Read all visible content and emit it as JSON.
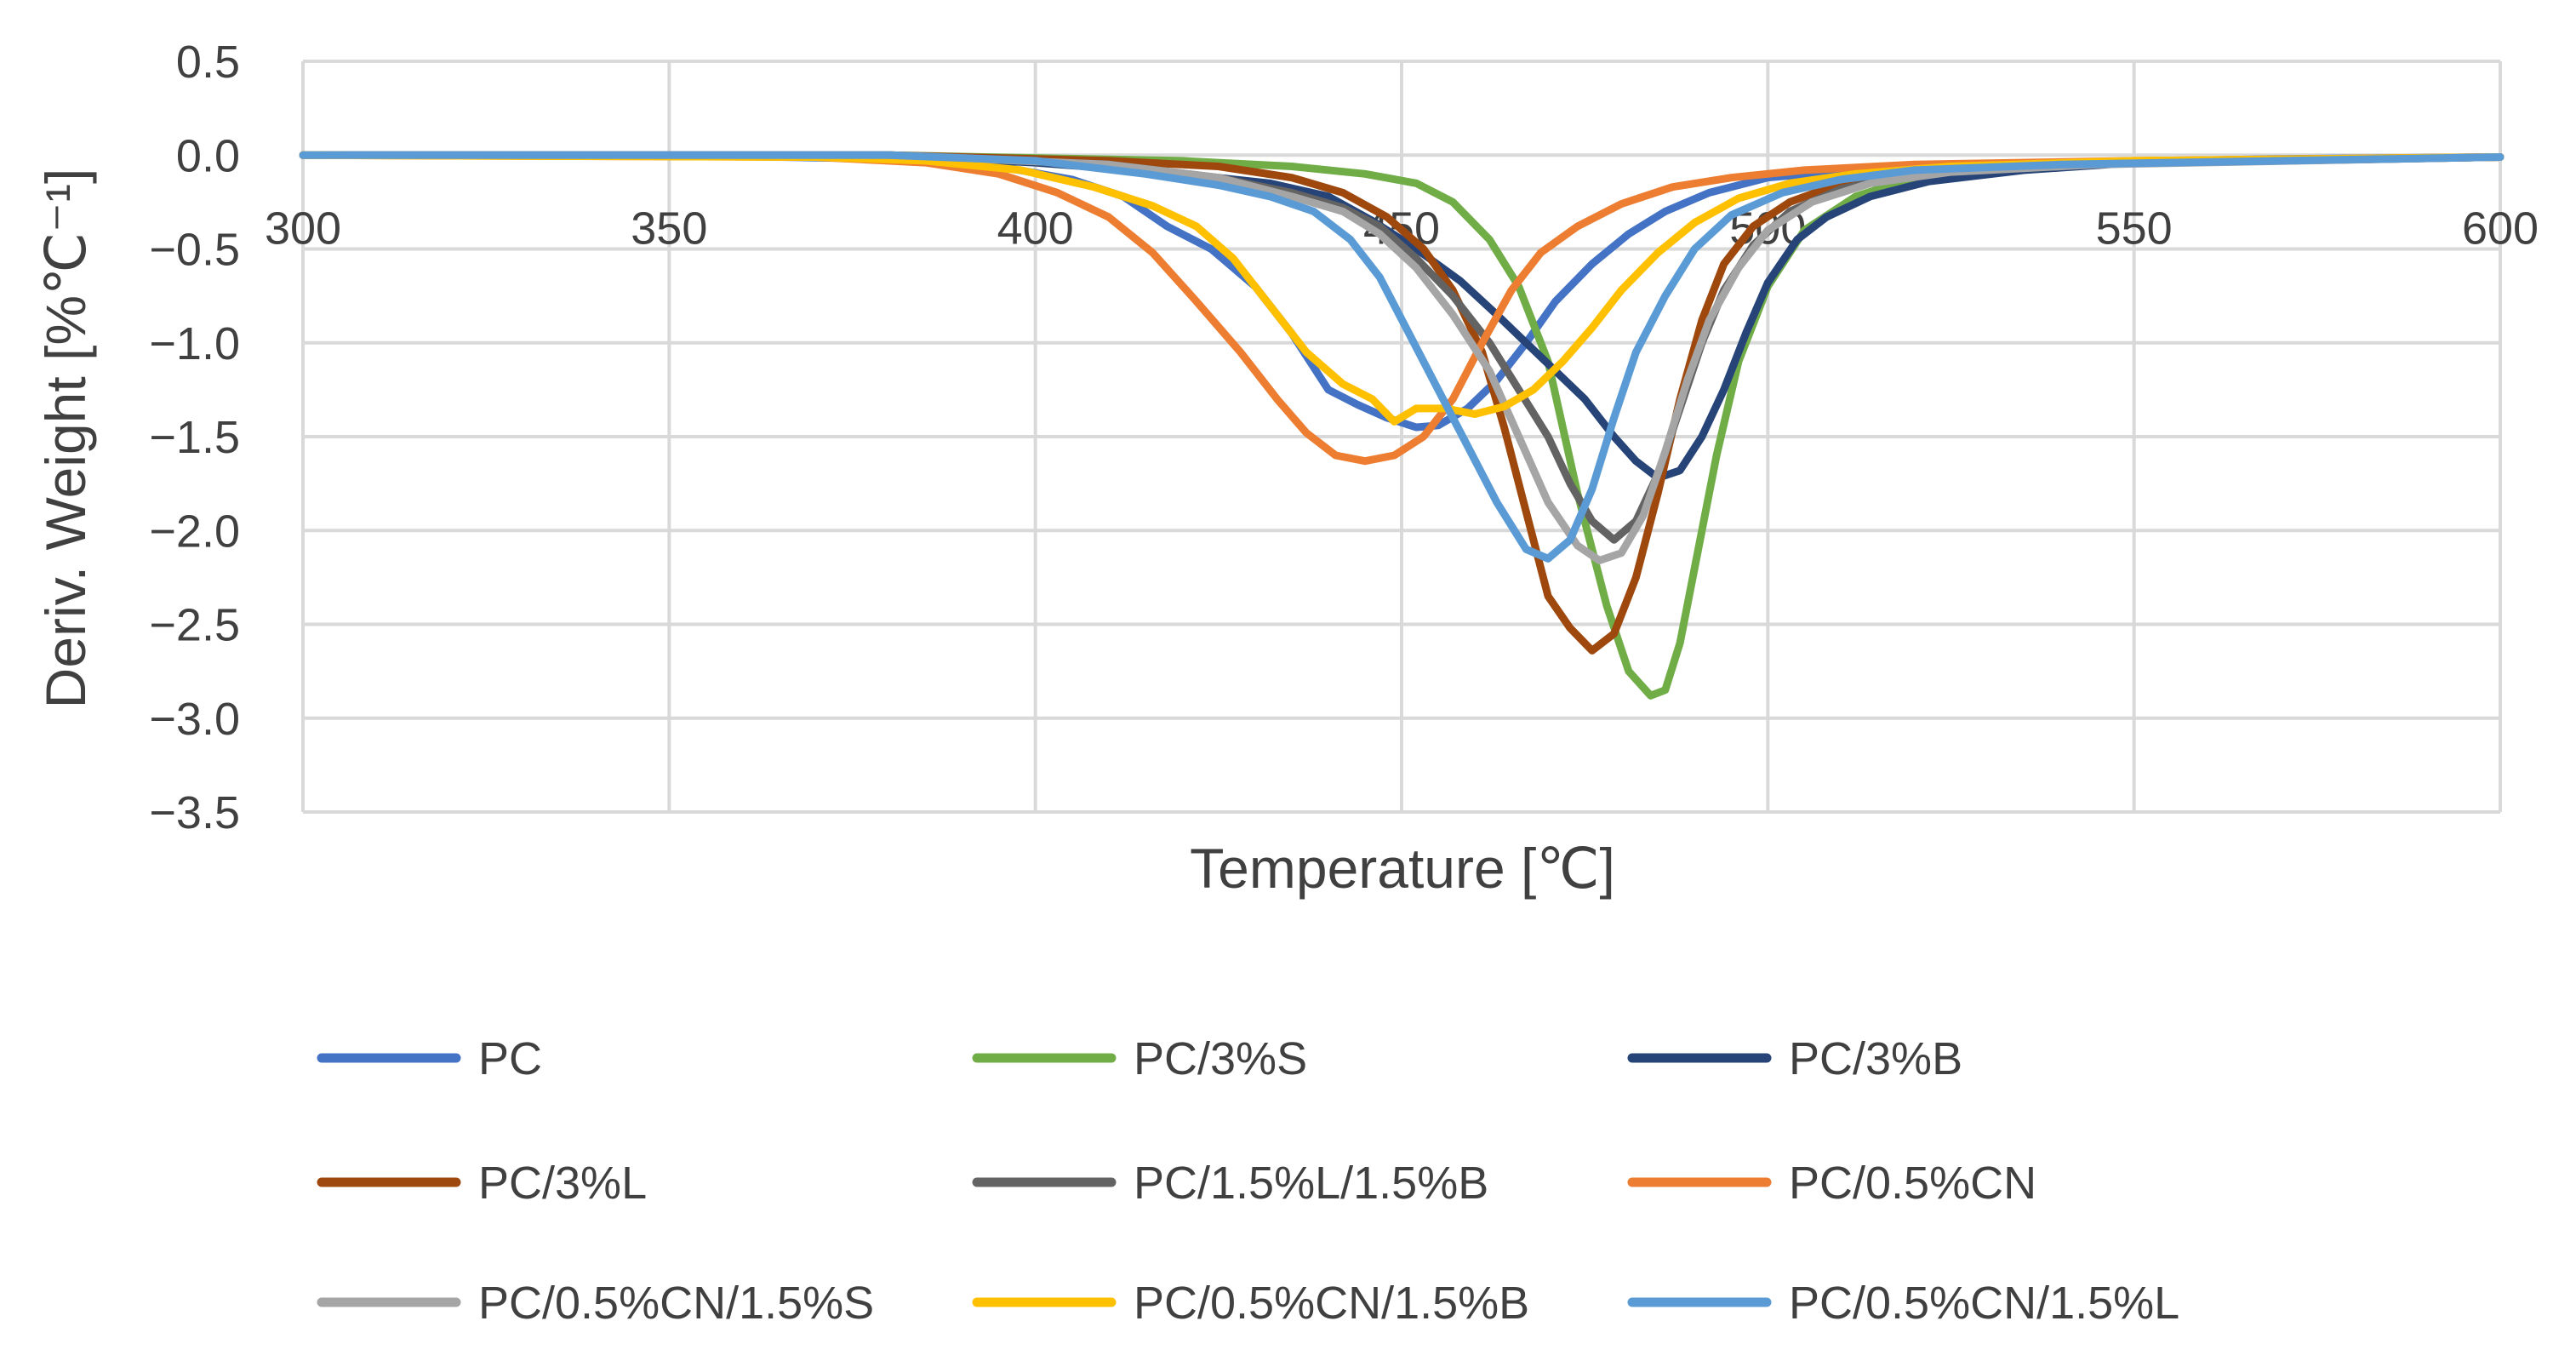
{
  "chart_data": {
    "type": "line",
    "title": "",
    "xlabel": "Temperature [℃]",
    "ylabel": "Deriv. Weight [%℃⁻¹]",
    "xlim": [
      300,
      600
    ],
    "ylim": [
      -3.5,
      0.5
    ],
    "xticks": [
      300,
      350,
      400,
      450,
      500,
      550,
      600
    ],
    "yticks": [
      0.5,
      0.0,
      -0.5,
      -1.0,
      -1.5,
      -2.0,
      -2.5,
      -3.0,
      -3.5
    ],
    "ytick_labels": [
      "0.5",
      "0.0",
      "−0.5",
      "−1.0",
      "−1.5",
      "−2.0",
      "−2.5",
      "−3.0",
      "−3.5"
    ],
    "grid": true,
    "legend_position": "bottom",
    "series": [
      {
        "name": "PC",
        "color": "#4472C4",
        "points": [
          [
            300,
            0
          ],
          [
            350,
            0
          ],
          [
            380,
            -0.02
          ],
          [
            395,
            -0.06
          ],
          [
            405,
            -0.13
          ],
          [
            412,
            -0.22
          ],
          [
            418,
            -0.38
          ],
          [
            424,
            -0.5
          ],
          [
            430,
            -0.7
          ],
          [
            435,
            -0.95
          ],
          [
            440,
            -1.25
          ],
          [
            444,
            -1.33
          ],
          [
            448,
            -1.4
          ],
          [
            452,
            -1.45
          ],
          [
            455,
            -1.44
          ],
          [
            459,
            -1.35
          ],
          [
            463,
            -1.2
          ],
          [
            467,
            -1.0
          ],
          [
            471,
            -0.78
          ],
          [
            476,
            -0.58
          ],
          [
            481,
            -0.42
          ],
          [
            486,
            -0.3
          ],
          [
            492,
            -0.2
          ],
          [
            500,
            -0.12
          ],
          [
            515,
            -0.07
          ],
          [
            540,
            -0.04
          ],
          [
            570,
            -0.02
          ],
          [
            600,
            -0.01
          ]
        ]
      },
      {
        "name": "PC/3%S",
        "color": "#70AD47",
        "points": [
          [
            300,
            0
          ],
          [
            380,
            0
          ],
          [
            420,
            -0.03
          ],
          [
            435,
            -0.06
          ],
          [
            445,
            -0.1
          ],
          [
            452,
            -0.15
          ],
          [
            457,
            -0.25
          ],
          [
            462,
            -0.45
          ],
          [
            466,
            -0.7
          ],
          [
            470,
            -1.1
          ],
          [
            474,
            -1.8
          ],
          [
            478,
            -2.4
          ],
          [
            481,
            -2.75
          ],
          [
            484,
            -2.88
          ],
          [
            486,
            -2.85
          ],
          [
            488,
            -2.6
          ],
          [
            490,
            -2.2
          ],
          [
            493,
            -1.6
          ],
          [
            496,
            -1.1
          ],
          [
            500,
            -0.7
          ],
          [
            505,
            -0.4
          ],
          [
            512,
            -0.22
          ],
          [
            520,
            -0.12
          ],
          [
            535,
            -0.06
          ],
          [
            560,
            -0.03
          ],
          [
            600,
            -0.01
          ]
        ]
      },
      {
        "name": "PC/3%B",
        "color": "#264478",
        "points": [
          [
            300,
            0
          ],
          [
            380,
            0
          ],
          [
            400,
            -0.04
          ],
          [
            420,
            -0.1
          ],
          [
            432,
            -0.15
          ],
          [
            440,
            -0.22
          ],
          [
            446,
            -0.35
          ],
          [
            452,
            -0.5
          ],
          [
            458,
            -0.67
          ],
          [
            463,
            -0.85
          ],
          [
            467,
            -1.0
          ],
          [
            471,
            -1.15
          ],
          [
            475,
            -1.3
          ],
          [
            479,
            -1.5
          ],
          [
            482,
            -1.63
          ],
          [
            485,
            -1.72
          ],
          [
            488,
            -1.68
          ],
          [
            491,
            -1.5
          ],
          [
            494,
            -1.25
          ],
          [
            497,
            -0.95
          ],
          [
            500,
            -0.68
          ],
          [
            504,
            -0.45
          ],
          [
            508,
            -0.33
          ],
          [
            514,
            -0.22
          ],
          [
            522,
            -0.14
          ],
          [
            535,
            -0.08
          ],
          [
            550,
            -0.04
          ],
          [
            600,
            -0.01
          ]
        ]
      },
      {
        "name": "PC/3%L",
        "color": "#9E480E",
        "points": [
          [
            300,
            0
          ],
          [
            380,
            0
          ],
          [
            410,
            -0.03
          ],
          [
            425,
            -0.06
          ],
          [
            435,
            -0.12
          ],
          [
            442,
            -0.2
          ],
          [
            448,
            -0.33
          ],
          [
            453,
            -0.5
          ],
          [
            457,
            -0.72
          ],
          [
            461,
            -1.05
          ],
          [
            464,
            -1.45
          ],
          [
            467,
            -1.9
          ],
          [
            470,
            -2.35
          ],
          [
            473,
            -2.52
          ],
          [
            476,
            -2.64
          ],
          [
            479,
            -2.55
          ],
          [
            482,
            -2.25
          ],
          [
            485,
            -1.8
          ],
          [
            488,
            -1.3
          ],
          [
            491,
            -0.88
          ],
          [
            494,
            -0.58
          ],
          [
            498,
            -0.38
          ],
          [
            503,
            -0.25
          ],
          [
            510,
            -0.15
          ],
          [
            520,
            -0.09
          ],
          [
            540,
            -0.05
          ],
          [
            600,
            -0.01
          ]
        ]
      },
      {
        "name": "PC/1.5%L/1.5%B",
        "color": "#636363",
        "points": [
          [
            300,
            0
          ],
          [
            380,
            0
          ],
          [
            410,
            -0.05
          ],
          [
            425,
            -0.12
          ],
          [
            435,
            -0.2
          ],
          [
            442,
            -0.28
          ],
          [
            447,
            -0.38
          ],
          [
            452,
            -0.55
          ],
          [
            457,
            -0.75
          ],
          [
            462,
            -1.0
          ],
          [
            466,
            -1.25
          ],
          [
            470,
            -1.5
          ],
          [
            473,
            -1.75
          ],
          [
            476,
            -1.95
          ],
          [
            479,
            -2.05
          ],
          [
            482,
            -1.95
          ],
          [
            485,
            -1.7
          ],
          [
            488,
            -1.35
          ],
          [
            491,
            -1.0
          ],
          [
            494,
            -0.72
          ],
          [
            498,
            -0.48
          ],
          [
            503,
            -0.3
          ],
          [
            510,
            -0.18
          ],
          [
            520,
            -0.1
          ],
          [
            540,
            -0.05
          ],
          [
            600,
            -0.01
          ]
        ]
      },
      {
        "name": "PC/0.5%CN",
        "color": "#ED7D31",
        "points": [
          [
            300,
            0
          ],
          [
            370,
            -0.01
          ],
          [
            385,
            -0.04
          ],
          [
            395,
            -0.1
          ],
          [
            403,
            -0.2
          ],
          [
            410,
            -0.33
          ],
          [
            416,
            -0.52
          ],
          [
            422,
            -0.78
          ],
          [
            428,
            -1.05
          ],
          [
            433,
            -1.3
          ],
          [
            437,
            -1.48
          ],
          [
            441,
            -1.6
          ],
          [
            445,
            -1.63
          ],
          [
            449,
            -1.6
          ],
          [
            453,
            -1.5
          ],
          [
            457,
            -1.3
          ],
          [
            461,
            -1.0
          ],
          [
            465,
            -0.72
          ],
          [
            469,
            -0.52
          ],
          [
            474,
            -0.38
          ],
          [
            480,
            -0.26
          ],
          [
            487,
            -0.17
          ],
          [
            495,
            -0.12
          ],
          [
            505,
            -0.08
          ],
          [
            520,
            -0.05
          ],
          [
            550,
            -0.03
          ],
          [
            600,
            -0.01
          ]
        ]
      },
      {
        "name": "PC/0.5%CN/1.5%S",
        "color": "#A5A5A5",
        "points": [
          [
            300,
            0
          ],
          [
            380,
            0
          ],
          [
            410,
            -0.05
          ],
          [
            425,
            -0.12
          ],
          [
            435,
            -0.22
          ],
          [
            442,
            -0.3
          ],
          [
            447,
            -0.42
          ],
          [
            452,
            -0.6
          ],
          [
            457,
            -0.85
          ],
          [
            462,
            -1.15
          ],
          [
            466,
            -1.5
          ],
          [
            470,
            -1.85
          ],
          [
            474,
            -2.08
          ],
          [
            477,
            -2.16
          ],
          [
            480,
            -2.12
          ],
          [
            483,
            -1.92
          ],
          [
            486,
            -1.58
          ],
          [
            489,
            -1.2
          ],
          [
            492,
            -0.88
          ],
          [
            496,
            -0.6
          ],
          [
            500,
            -0.4
          ],
          [
            506,
            -0.25
          ],
          [
            514,
            -0.15
          ],
          [
            525,
            -0.09
          ],
          [
            545,
            -0.05
          ],
          [
            600,
            -0.01
          ]
        ]
      },
      {
        "name": "PC/0.5%CN/1.5%B",
        "color": "#FFC000",
        "points": [
          [
            300,
            0
          ],
          [
            370,
            -0.01
          ],
          [
            385,
            -0.03
          ],
          [
            398,
            -0.08
          ],
          [
            408,
            -0.17
          ],
          [
            416,
            -0.27
          ],
          [
            422,
            -0.38
          ],
          [
            427,
            -0.55
          ],
          [
            432,
            -0.8
          ],
          [
            437,
            -1.05
          ],
          [
            442,
            -1.22
          ],
          [
            446,
            -1.3
          ],
          [
            449,
            -1.42
          ],
          [
            452,
            -1.35
          ],
          [
            456,
            -1.35
          ],
          [
            460,
            -1.38
          ],
          [
            464,
            -1.34
          ],
          [
            468,
            -1.25
          ],
          [
            472,
            -1.1
          ],
          [
            476,
            -0.92
          ],
          [
            480,
            -0.72
          ],
          [
            485,
            -0.52
          ],
          [
            490,
            -0.36
          ],
          [
            496,
            -0.23
          ],
          [
            503,
            -0.15
          ],
          [
            512,
            -0.1
          ],
          [
            525,
            -0.06
          ],
          [
            550,
            -0.03
          ],
          [
            600,
            -0.01
          ]
        ]
      },
      {
        "name": "PC/0.5%CN/1.5%L",
        "color": "#5B9BD5",
        "points": [
          [
            300,
            0
          ],
          [
            380,
            0
          ],
          [
            400,
            -0.03
          ],
          [
            415,
            -0.1
          ],
          [
            425,
            -0.16
          ],
          [
            432,
            -0.22
          ],
          [
            438,
            -0.3
          ],
          [
            443,
            -0.45
          ],
          [
            447,
            -0.65
          ],
          [
            451,
            -0.95
          ],
          [
            455,
            -1.25
          ],
          [
            459,
            -1.55
          ],
          [
            463,
            -1.85
          ],
          [
            467,
            -2.1
          ],
          [
            470,
            -2.15
          ],
          [
            473,
            -2.05
          ],
          [
            476,
            -1.78
          ],
          [
            479,
            -1.4
          ],
          [
            482,
            -1.05
          ],
          [
            486,
            -0.75
          ],
          [
            490,
            -0.5
          ],
          [
            495,
            -0.32
          ],
          [
            502,
            -0.2
          ],
          [
            510,
            -0.13
          ],
          [
            520,
            -0.08
          ],
          [
            540,
            -0.05
          ],
          [
            600,
            -0.01
          ]
        ]
      }
    ]
  }
}
